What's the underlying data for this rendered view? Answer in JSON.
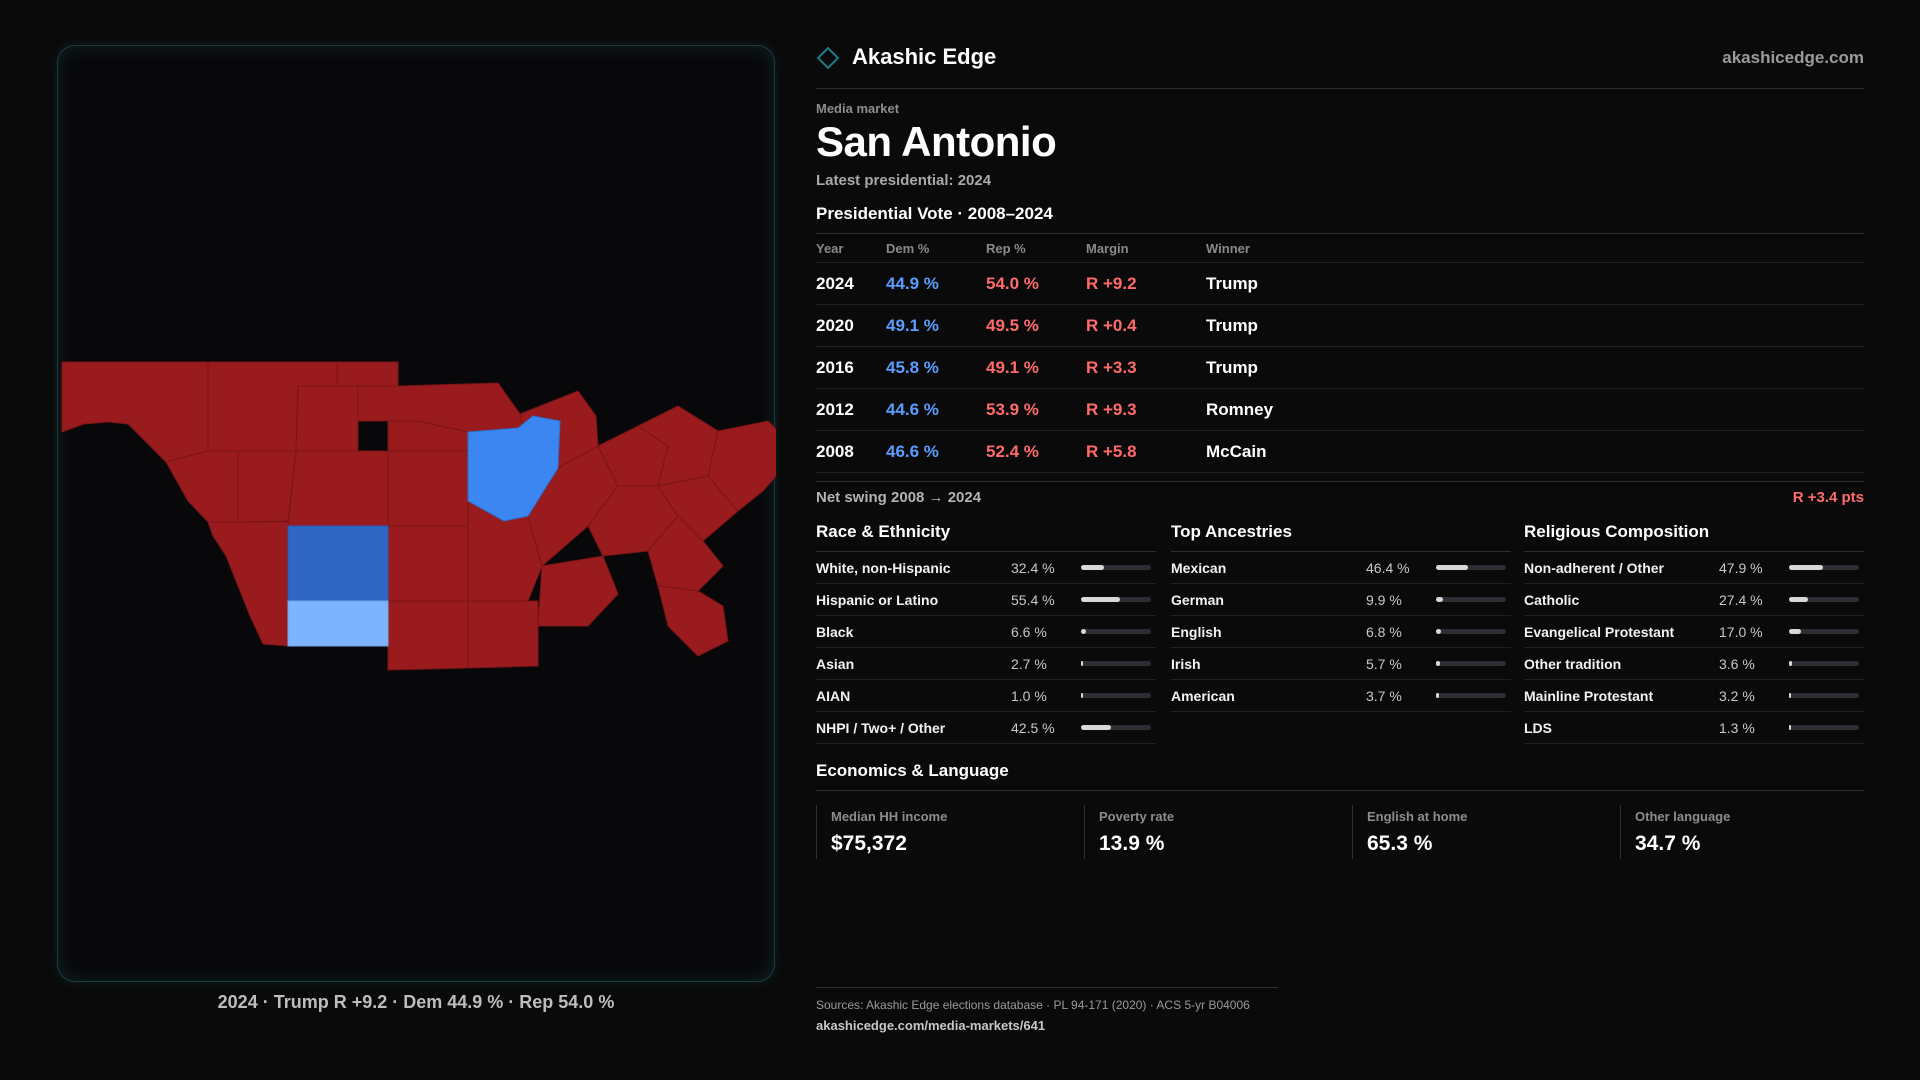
{
  "brand": {
    "name": "Akashic Edge",
    "site": "akashicedge.com",
    "logo_icon": "diamond-icon"
  },
  "header": {
    "eyebrow": "Media market",
    "title": "San Antonio",
    "subtitle": "Latest presidential: 2024"
  },
  "votes": {
    "title": "Presidential Vote · 2008–2024",
    "columns": {
      "year": "Year",
      "dem": "Dem %",
      "rep": "Rep %",
      "margin": "Margin",
      "winner": "Winner"
    },
    "rows": [
      {
        "year": "2024",
        "dem": "44.9 %",
        "rep": "54.0 %",
        "margin": "R +9.2",
        "winner": "Trump"
      },
      {
        "year": "2020",
        "dem": "49.1 %",
        "rep": "49.5 %",
        "margin": "R +0.4",
        "winner": "Trump"
      },
      {
        "year": "2016",
        "dem": "45.8 %",
        "rep": "49.1 %",
        "margin": "R +3.3",
        "winner": "Trump"
      },
      {
        "year": "2012",
        "dem": "44.6 %",
        "rep": "53.9 %",
        "margin": "R +9.3",
        "winner": "Romney"
      },
      {
        "year": "2008",
        "dem": "46.6 %",
        "rep": "52.4 %",
        "margin": "R +5.8",
        "winner": "McCain"
      }
    ]
  },
  "swing": {
    "label": "Net swing 2008 → 2024",
    "value": "R +3.4 pts"
  },
  "race": {
    "title": "Race & Ethnicity",
    "rows": [
      {
        "label": "White, non-Hispanic",
        "value": "32.4 %",
        "pct": 32.4
      },
      {
        "label": "Hispanic or Latino",
        "value": "55.4 %",
        "pct": 55.4
      },
      {
        "label": "Black",
        "value": "6.6 %",
        "pct": 6.6
      },
      {
        "label": "Asian",
        "value": "2.7 %",
        "pct": 2.7
      },
      {
        "label": "AIAN",
        "value": "1.0 %",
        "pct": 1.0
      },
      {
        "label": "NHPI / Two+ / Other",
        "value": "42.5 %",
        "pct": 42.5
      }
    ]
  },
  "ancestry": {
    "title": "Top Ancestries",
    "rows": [
      {
        "label": "Mexican",
        "value": "46.4 %",
        "pct": 46.4
      },
      {
        "label": "German",
        "value": "9.9 %",
        "pct": 9.9
      },
      {
        "label": "English",
        "value": "6.8 %",
        "pct": 6.8
      },
      {
        "label": "Irish",
        "value": "5.7 %",
        "pct": 5.7
      },
      {
        "label": "American",
        "value": "3.7 %",
        "pct": 3.7
      }
    ]
  },
  "religion": {
    "title": "Religious Composition",
    "rows": [
      {
        "label": "Non-adherent / Other",
        "value": "47.9 %",
        "pct": 47.9
      },
      {
        "label": "Catholic",
        "value": "27.4 %",
        "pct": 27.4
      },
      {
        "label": "Evangelical Protestant",
        "value": "17.0 %",
        "pct": 17.0
      },
      {
        "label": "Other tradition",
        "value": "3.6 %",
        "pct": 3.6
      },
      {
        "label": "Mainline Protestant",
        "value": "3.2 %",
        "pct": 3.2
      },
      {
        "label": "LDS",
        "value": "1.3 %",
        "pct": 1.3
      }
    ]
  },
  "economics": {
    "title": "Economics & Language",
    "items": [
      {
        "label": "Median HH income",
        "value": "$75,372"
      },
      {
        "label": "Poverty rate",
        "value": "13.9 %"
      },
      {
        "label": "English at home",
        "value": "65.3 %"
      },
      {
        "label": "Other language",
        "value": "34.7 %"
      }
    ]
  },
  "map": {
    "caption": "2024 · Trump R +9.2 · Dem 44.9 % · Rep 54.0 %",
    "colors": {
      "rep": "#991b1e",
      "dem_strong": "#2f66c4",
      "dem": "#3b86f0",
      "dem_light": "#7eb4ff"
    }
  },
  "footer": {
    "sources": "Sources: Akashic Edge elections database · PL 94-171 (2020) · ACS 5-yr B04006",
    "url": "akashicedge.com/media-markets/641"
  }
}
